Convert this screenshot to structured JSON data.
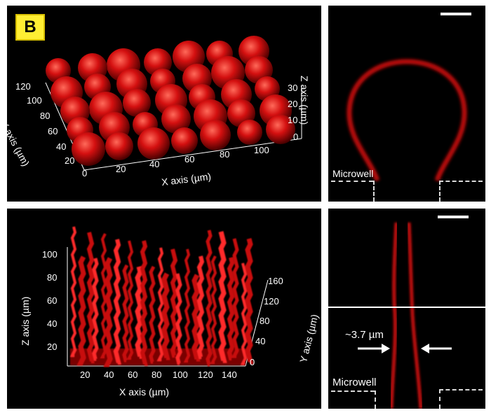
{
  "panel_label": "B",
  "top_left": {
    "x_ticks": [
      "0",
      "20",
      "40",
      "60",
      "80",
      "100"
    ],
    "x_title": "X axis (µm)",
    "y_ticks": [
      "120",
      "100",
      "80",
      "60",
      "40",
      "20"
    ],
    "y_title": "Y axis (µm)",
    "z_ticks": [
      "30",
      "20",
      "10",
      "0"
    ],
    "z_title": "Z axis (µm)"
  },
  "top_right": {
    "microwell_label": "Microwell"
  },
  "bottom_left": {
    "x_ticks": [
      "20",
      "40",
      "60",
      "80",
      "100",
      "120",
      "140"
    ],
    "x_title": "X axis (µm)",
    "z_ticks": [
      "100",
      "80",
      "60",
      "40",
      "20"
    ],
    "z_title": "Z axis (µm)",
    "y_ticks": [
      "160",
      "120",
      "80",
      "40",
      "0"
    ],
    "y_title": "Y axis (µm)"
  },
  "bottom_right": {
    "width_label": "~3.7 µm",
    "microwell_label": "Microwell"
  },
  "colors": {
    "signal": "#e01010",
    "background": "#000000",
    "badge": "#ffee33"
  }
}
